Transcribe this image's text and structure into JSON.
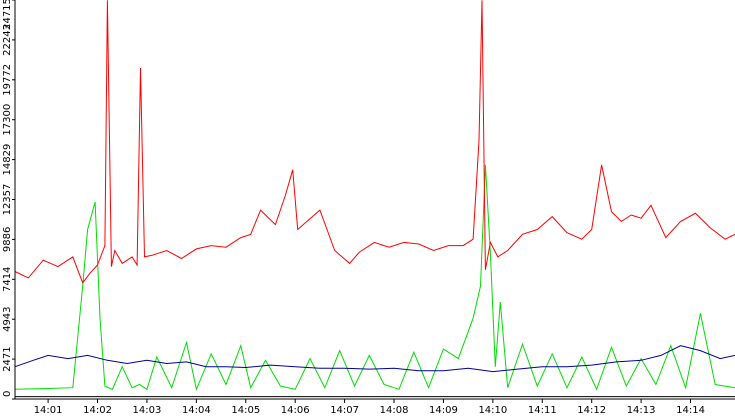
{
  "chart_data": {
    "type": "line",
    "title": "",
    "xlabel": "",
    "ylabel": "",
    "ylim": [
      0,
      24715
    ],
    "y_ticks": [
      "0",
      "2471",
      "4943",
      "7414",
      "9886",
      "12357",
      "14829",
      "17300",
      "19772",
      "22243",
      "24715"
    ],
    "x_ticks": [
      "14:01",
      "14:02",
      "14:03",
      "14:04",
      "14:05",
      "14:06",
      "14:07",
      "14:08",
      "14:09",
      "14:10",
      "14:11",
      "14:12",
      "14:13",
      "14:14"
    ],
    "x_tick_minutes": [
      1,
      2,
      3,
      4,
      5,
      6,
      7,
      8,
      9,
      10,
      11,
      12,
      13,
      14
    ],
    "x_range_minutes": [
      0.33,
      14.9
    ],
    "grid": false,
    "legend": "none",
    "axis_color": "#000000",
    "series_style": [
      {
        "color": "#00dd00"
      },
      {
        "color": "#ff0000"
      },
      {
        "color": "#000099"
      },
      {
        "color": "#000000"
      }
    ],
    "series": [
      {
        "x": [
          0.33,
          1.0,
          1.5,
          1.7,
          1.8,
          1.95,
          2.05,
          2.15,
          2.3,
          2.5,
          2.7,
          2.85,
          3.0,
          3.2,
          3.5,
          3.8,
          4.0,
          4.3,
          4.6,
          4.9,
          5.1,
          5.4,
          5.7,
          6.0,
          6.3,
          6.6,
          6.9,
          7.2,
          7.5,
          7.8,
          8.1,
          8.4,
          8.7,
          9.0,
          9.3,
          9.6,
          9.75,
          9.85,
          9.95,
          10.05,
          10.15,
          10.3,
          10.6,
          10.9,
          11.2,
          11.5,
          11.8,
          12.1,
          12.4,
          12.7,
          13.0,
          13.3,
          13.6,
          13.9,
          14.2,
          14.5,
          14.9
        ],
        "values": [
          600,
          650,
          700,
          7000,
          10500,
          12200,
          5000,
          800,
          600,
          2000,
          700,
          900,
          600,
          2600,
          700,
          3500,
          600,
          2800,
          900,
          3300,
          700,
          2400,
          800,
          600,
          2500,
          700,
          3000,
          800,
          2700,
          900,
          600,
          2900,
          700,
          3100,
          2500,
          5000,
          7000,
          14500,
          9000,
          2000,
          6000,
          700,
          3400,
          800,
          2800,
          700,
          2600,
          600,
          3200,
          800,
          2500,
          900,
          3300,
          700,
          5300,
          900,
          700
        ]
      },
      {
        "x": [
          0.33,
          0.6,
          0.9,
          1.2,
          1.5,
          1.7,
          1.85,
          2.0,
          2.15,
          2.2,
          2.28,
          2.35,
          2.5,
          2.7,
          2.8,
          2.87,
          2.95,
          3.1,
          3.4,
          3.7,
          4.0,
          4.3,
          4.6,
          4.9,
          5.1,
          5.3,
          5.6,
          5.8,
          5.95,
          6.05,
          6.2,
          6.5,
          6.8,
          7.1,
          7.3,
          7.6,
          7.9,
          8.2,
          8.5,
          8.8,
          9.1,
          9.4,
          9.6,
          9.72,
          9.78,
          9.85,
          9.95,
          10.1,
          10.3,
          10.6,
          10.9,
          11.2,
          11.5,
          11.8,
          12.0,
          12.2,
          12.4,
          12.6,
          12.8,
          13.0,
          13.2,
          13.5,
          13.8,
          14.1,
          14.4,
          14.7,
          14.9
        ],
        "values": [
          7900,
          7500,
          8600,
          8200,
          8800,
          7200,
          7800,
          8300,
          9500,
          24700,
          8200,
          9200,
          8400,
          8800,
          8300,
          20500,
          8800,
          8900,
          9200,
          8700,
          9300,
          9500,
          9400,
          10000,
          10200,
          11700,
          10800,
          12600,
          14200,
          10500,
          10900,
          11700,
          9200,
          8400,
          9100,
          9700,
          9400,
          9700,
          9600,
          9200,
          9500,
          9500,
          9900,
          16000,
          24700,
          8000,
          9700,
          8800,
          9200,
          10200,
          10500,
          11300,
          10300,
          9900,
          10500,
          14500,
          11600,
          11000,
          11400,
          11200,
          12000,
          10000,
          11000,
          11500,
          10600,
          9900,
          10200
        ]
      },
      {
        "x": [
          0.33,
          0.7,
          1.0,
          1.4,
          1.8,
          2.2,
          2.6,
          3.0,
          3.4,
          3.8,
          4.2,
          4.6,
          5.0,
          5.5,
          6.0,
          6.5,
          7.0,
          7.5,
          8.0,
          8.5,
          9.0,
          9.5,
          10.0,
          10.5,
          11.0,
          11.5,
          12.0,
          12.5,
          13.0,
          13.4,
          13.8,
          14.2,
          14.6,
          14.9
        ],
        "values": [
          2000,
          2400,
          2700,
          2500,
          2700,
          2400,
          2200,
          2400,
          2200,
          2300,
          2000,
          2000,
          1950,
          2100,
          2000,
          1900,
          1900,
          1850,
          1900,
          1750,
          1750,
          1900,
          1700,
          1850,
          2000,
          2000,
          2100,
          2300,
          2400,
          2700,
          3300,
          3000,
          2500,
          2700
        ]
      },
      {
        "x": [
          0.33,
          3.0,
          6.0,
          9.0,
          12.0,
          14.9
        ],
        "values": [
          150,
          150,
          150,
          150,
          150,
          150
        ]
      }
    ]
  }
}
